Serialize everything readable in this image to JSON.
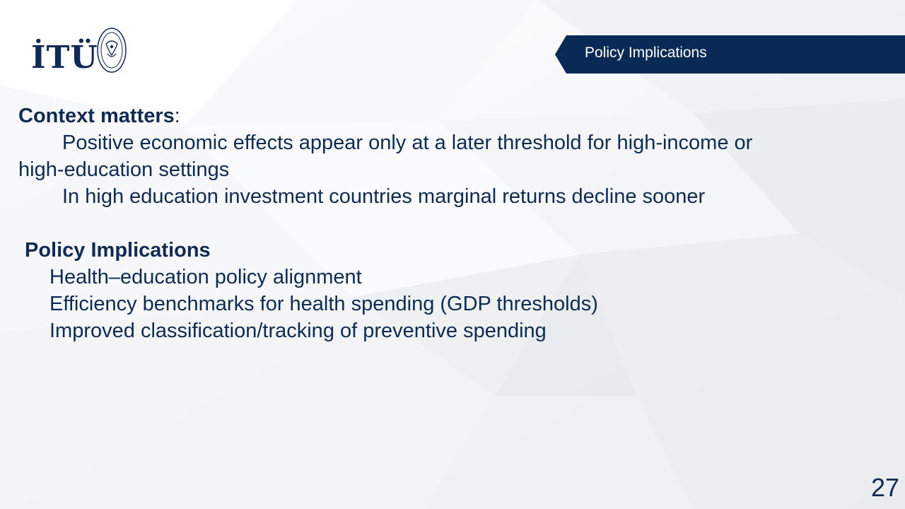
{
  "logo": {
    "wordmark": "İTÜ",
    "seal_text": "İSTANBUL TEKNİK ÜNİVERSİTESİ",
    "seal_year": "1773"
  },
  "header": {
    "title": "Policy Implications"
  },
  "content": {
    "context_heading": "Context matters",
    "context_colon": ":",
    "context_point_1_line_1": "Positive economic effects appear only at a later threshold for high-income or",
    "context_point_1_line_2": "high-education settings",
    "context_point_2": "In high education investment countries marginal returns decline sooner",
    "policy_heading": "Policy Implications",
    "policy_items": [
      "Health–education policy alignment",
      "Efficiency benchmarks for health spending (GDP thresholds)",
      "Improved classification/tracking of preventive spending"
    ]
  },
  "page_number": "27",
  "colors": {
    "navy": "#0f2b52",
    "banner": "#0a2a56",
    "background": "#f3f4f6"
  }
}
